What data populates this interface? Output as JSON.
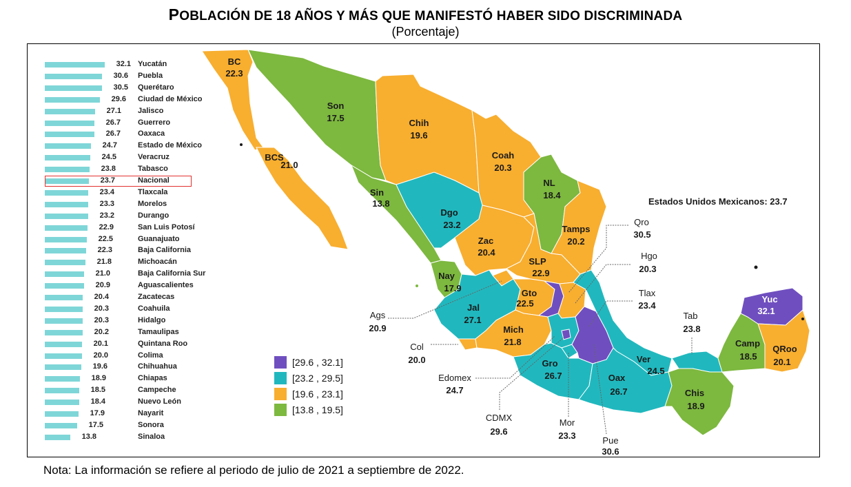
{
  "title": {
    "prefix_big": "P",
    "text": "OBLACIÓN DE 18 AÑOS Y MÁS QUE MANIFESTÓ HABER SIDO DISCRIMINADA"
  },
  "subtitle": "(Porcentaje)",
  "note": "Nota: La información se refiere al periodo de julio de 2021 a septiembre de 2022.",
  "national_label": "Estados Unidos Mexicanos: 23.7",
  "colors": {
    "purple": "#6f4fbf",
    "teal": "#20b8be",
    "orange": "#f8ae2f",
    "green": "#7db83f",
    "bar": "#7fd6d8",
    "highlight": "#e0302d"
  },
  "ranking": [
    {
      "value": "32.1",
      "name": "Yucatán",
      "v": 32.1
    },
    {
      "value": "30.6",
      "name": "Puebla",
      "v": 30.6
    },
    {
      "value": "30.5",
      "name": "Querétaro",
      "v": 30.5
    },
    {
      "value": "29.6",
      "name": "Ciudad de México",
      "v": 29.6
    },
    {
      "value": "27.1",
      "name": "Jalisco",
      "v": 27.1
    },
    {
      "value": "26.7",
      "name": "Guerrero",
      "v": 26.7
    },
    {
      "value": "26.7",
      "name": "Oaxaca",
      "v": 26.7
    },
    {
      "value": "24.7",
      "name": "Estado de México",
      "v": 24.7
    },
    {
      "value": "24.5",
      "name": "Veracruz",
      "v": 24.5
    },
    {
      "value": "23.8",
      "name": "Tabasco",
      "v": 23.8
    },
    {
      "value": "23.7",
      "name": "Nacional",
      "v": 23.7
    },
    {
      "value": "23.4",
      "name": "Tlaxcala",
      "v": 23.4
    },
    {
      "value": "23.3",
      "name": "Morelos",
      "v": 23.3
    },
    {
      "value": "23.2",
      "name": "Durango",
      "v": 23.2
    },
    {
      "value": "22.9",
      "name": "San Luis Potosí",
      "v": 22.9
    },
    {
      "value": "22.5",
      "name": "Guanajuato",
      "v": 22.5
    },
    {
      "value": "22.3",
      "name": "Baja California",
      "v": 22.3
    },
    {
      "value": "21.8",
      "name": "Michoacán",
      "v": 21.8
    },
    {
      "value": "21.0",
      "name": "Baja California Sur",
      "v": 21.0
    },
    {
      "value": "20.9",
      "name": "Aguascalientes",
      "v": 20.9
    },
    {
      "value": "20.4",
      "name": "Zacatecas",
      "v": 20.4
    },
    {
      "value": "20.3",
      "name": "Coahuila",
      "v": 20.3
    },
    {
      "value": "20.3",
      "name": "Hidalgo",
      "v": 20.3
    },
    {
      "value": "20.2",
      "name": "Tamaulipas",
      "v": 20.2
    },
    {
      "value": "20.1",
      "name": "Quintana Roo",
      "v": 20.1
    },
    {
      "value": "20.0",
      "name": "Colima",
      "v": 20.0
    },
    {
      "value": "19.6",
      "name": "Chihuahua",
      "v": 19.6
    },
    {
      "value": "18.9",
      "name": "Chiapas",
      "v": 18.9
    },
    {
      "value": "18.5",
      "name": "Campeche",
      "v": 18.5
    },
    {
      "value": "18.4",
      "name": "Nuevo León",
      "v": 18.4
    },
    {
      "value": "17.9",
      "name": "Nayarit",
      "v": 17.9
    },
    {
      "value": "17.5",
      "name": "Sonora",
      "v": 17.5
    },
    {
      "value": "13.8",
      "name": "Sinaloa",
      "v": 13.8
    }
  ],
  "legend": [
    {
      "label": "[29.6 , 32.1]",
      "color": "#6f4fbf"
    },
    {
      "label": "[23.2 , 29.5]",
      "color": "#20b8be"
    },
    {
      "label": "[19.6 , 23.1]",
      "color": "#f8ae2f"
    },
    {
      "label": "[13.8 , 19.5]",
      "color": "#7db83f"
    }
  ],
  "map_states": {
    "bc": {
      "abbr": "BC",
      "value": "22.3"
    },
    "son": {
      "abbr": "Son",
      "value": "17.5"
    },
    "chih": {
      "abbr": "Chih",
      "value": "19.6"
    },
    "coah": {
      "abbr": "Coah",
      "value": "20.3"
    },
    "nl": {
      "abbr": "NL",
      "value": "18.4"
    },
    "bcs": {
      "abbr": "BCS",
      "value": "21.0"
    },
    "sin": {
      "abbr": "Sin",
      "value": "13.8"
    },
    "dgo": {
      "abbr": "Dgo",
      "value": "23.2"
    },
    "zac": {
      "abbr": "Zac",
      "value": "20.4"
    },
    "tamps": {
      "abbr": "Tamps",
      "value": "20.2"
    },
    "slp": {
      "abbr": "SLP",
      "value": "22.9"
    },
    "nay": {
      "abbr": "Nay",
      "value": "17.9"
    },
    "jal": {
      "abbr": "Jal",
      "value": "27.1"
    },
    "gto": {
      "abbr": "Gto",
      "value": "22.5"
    },
    "mich": {
      "abbr": "Mich",
      "value": "21.8"
    },
    "gro": {
      "abbr": "Gro",
      "value": "26.7"
    },
    "oax": {
      "abbr": "Oax",
      "value": "26.7"
    },
    "ver": {
      "abbr": "Ver",
      "value": "24.5"
    },
    "chis": {
      "abbr": "Chis",
      "value": "18.9"
    },
    "camp": {
      "abbr": "Camp",
      "value": "18.5"
    },
    "yuc": {
      "abbr": "Yuc",
      "value": "32.1"
    },
    "qroo": {
      "abbr": "QRoo",
      "value": "20.1"
    }
  },
  "callouts": {
    "qro": {
      "abbr": "Qro",
      "value": "30.5"
    },
    "hgo": {
      "abbr": "Hgo",
      "value": "20.3"
    },
    "tlax": {
      "abbr": "Tlax",
      "value": "23.4"
    },
    "tab": {
      "abbr": "Tab",
      "value": "23.8"
    },
    "ags": {
      "abbr": "Ags",
      "value": "20.9"
    },
    "col": {
      "abbr": "Col",
      "value": "20.0"
    },
    "edomex": {
      "abbr": "Edomex",
      "value": "24.7"
    },
    "cdmx": {
      "abbr": "CDMX",
      "value": "29.6"
    },
    "mor": {
      "abbr": "Mor",
      "value": "23.3"
    },
    "pue": {
      "abbr": "Pue",
      "value": "30.6"
    }
  }
}
